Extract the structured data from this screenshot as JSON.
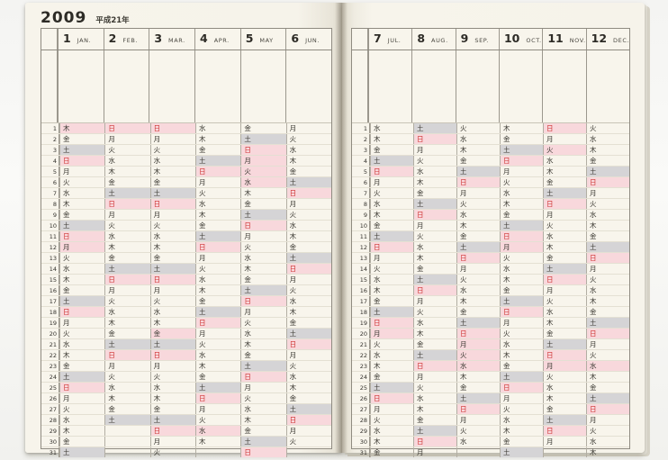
{
  "meta": {
    "year": "2009",
    "era_label": "平成21年"
  },
  "row_count": 31,
  "colors": {
    "sunday_holiday_bg": "#f8d8dc",
    "saturday_bg": "#d5d4d6",
    "sunday_text": "#ce2f2f",
    "paper": "#f6f3ea"
  },
  "weekday_chars": {
    "sun": "日",
    "mon": "月",
    "tue": "火",
    "wed": "水",
    "thu": "木",
    "fri": "金",
    "sat": "土"
  },
  "pages": [
    {
      "side": "left",
      "months": [
        {
          "num": "1",
          "abbr": "JAN.",
          "wd": "木金土日月火水木金土日月火水木金土日月火水木金土日月火水木金土",
          "holidays": [
            1,
            12
          ]
        },
        {
          "num": "2",
          "abbr": "FEB.",
          "wd": "日月火水木金土日月火水木金土日月火水木金土日月火水木金土",
          "holidays": []
        },
        {
          "num": "3",
          "abbr": "MAR.",
          "wd": "日月火水木金土日月火水木金土日月火水木金土日月火水木金土日月火",
          "holidays": [
            20
          ]
        },
        {
          "num": "4",
          "abbr": "APR.",
          "wd": "水木金土日月火水木金土日月火水木金土日月火水木金土日月火水木",
          "holidays": [
            29
          ]
        },
        {
          "num": "5",
          "abbr": "MAY",
          "wd": "金土日月火水木金土日月火水木金土日月火水木金土日月火水木金土日",
          "holidays": [
            4,
            5,
            6
          ]
        },
        {
          "num": "6",
          "abbr": "JUN.",
          "wd": "月火水木金土日月火水木金土日月火水木金土日月火水木金土日月火",
          "holidays": []
        }
      ]
    },
    {
      "side": "right",
      "months": [
        {
          "num": "7",
          "abbr": "JUL.",
          "wd": "水木金土日月火水木金土日月火水木金土日月火水木金土日月火水木金",
          "holidays": [
            20
          ]
        },
        {
          "num": "8",
          "abbr": "AUG.",
          "wd": "土日月火水木金土日月火水木金土日月火水木金土日月火水木金土日月",
          "holidays": []
        },
        {
          "num": "9",
          "abbr": "SEP.",
          "wd": "火水木金土日月火水木金土日月火水木金土日月火水木金土日月火水",
          "holidays": [
            21,
            22,
            23
          ]
        },
        {
          "num": "10",
          "abbr": "OCT.",
          "wd": "木金土日月火水木金土日月火水木金土日月火水木金土日月火水木金土",
          "holidays": [
            12
          ]
        },
        {
          "num": "11",
          "abbr": "NOV.",
          "wd": "日月火水木金土日月火水木金土日月火水木金土日月火水木金土日月",
          "holidays": [
            3,
            23
          ]
        },
        {
          "num": "12",
          "abbr": "DEC.",
          "wd": "火水木金土日月火水木金土日月火水木金土日月火水木金土日月火水木",
          "holidays": [
            23
          ]
        }
      ]
    }
  ]
}
